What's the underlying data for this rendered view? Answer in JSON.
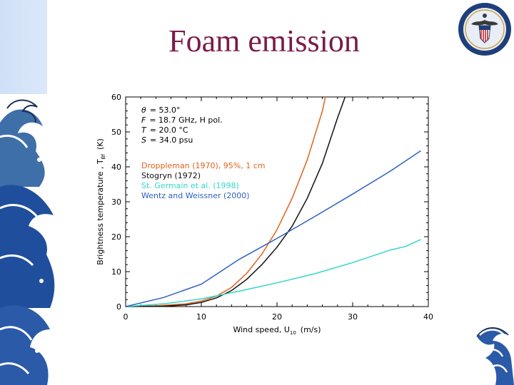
{
  "slide": {
    "title": "Foam emission"
  },
  "chart_data": {
    "type": "line",
    "xlabel": "Wind speed, U",
    "xlabel_sub": "10",
    "xlabel_unit": "(m/s)",
    "ylabel": "Brightness temperature , T",
    "ylabel_sub": "Bf",
    "ylabel_unit": "(K)",
    "xlim": [
      0,
      40
    ],
    "ylim": [
      0,
      60
    ],
    "xticks": [
      0,
      10,
      20,
      30,
      40
    ],
    "yticks": [
      0,
      10,
      20,
      30,
      40,
      50,
      60
    ],
    "xtick_labels": [
      "0",
      "10",
      "20",
      "30",
      "40"
    ],
    "ytick_labels": [
      "0",
      "10",
      "20",
      "30",
      "40",
      "50",
      "60"
    ],
    "grid": false,
    "conditions": [
      {
        "symbol": "θ",
        "text": "= 53.0°"
      },
      {
        "symbol": "F",
        "text": "= 18.7 GHz, H pol."
      },
      {
        "symbol": "T",
        "text": "= 20.0 °C"
      },
      {
        "symbol": "S",
        "text": "= 34.0 psu"
      }
    ],
    "series": [
      {
        "name": "Droppleman (1970), 95%, 1 cm",
        "color": "#e0621e",
        "points": [
          [
            0,
            0
          ],
          [
            4,
            0.2
          ],
          [
            8,
            0.8
          ],
          [
            10,
            1.6
          ],
          [
            12,
            3
          ],
          [
            14,
            5.5
          ],
          [
            16,
            9.5
          ],
          [
            18,
            15
          ],
          [
            20,
            22
          ],
          [
            22,
            31
          ],
          [
            24,
            42
          ],
          [
            26,
            56
          ],
          [
            26.4,
            60
          ]
        ]
      },
      {
        "name": "Stogryn (1972)",
        "color": "#111111",
        "points": [
          [
            0,
            0
          ],
          [
            5,
            0.1
          ],
          [
            8,
            0.5
          ],
          [
            10,
            1.2
          ],
          [
            12,
            2.5
          ],
          [
            14,
            4.6
          ],
          [
            16,
            7.8
          ],
          [
            18,
            12
          ],
          [
            20,
            17
          ],
          [
            22,
            23
          ],
          [
            24,
            31
          ],
          [
            26,
            41
          ],
          [
            28,
            54
          ],
          [
            29,
            60
          ]
        ]
      },
      {
        "name": "St. Germain et al. (1998)",
        "color": "#33d6c8",
        "points": [
          [
            0,
            0
          ],
          [
            5,
            0.8
          ],
          [
            10,
            2.2
          ],
          [
            15,
            4.4
          ],
          [
            20,
            6.8
          ],
          [
            25,
            9.4
          ],
          [
            30,
            12.6
          ],
          [
            35,
            16.2
          ],
          [
            37,
            17.2
          ],
          [
            39,
            19.2
          ]
        ]
      },
      {
        "name": "Wentz and Weissner (2000)",
        "color": "#2d5fc4",
        "points": [
          [
            0,
            0
          ],
          [
            5,
            2.6
          ],
          [
            10,
            6.4
          ],
          [
            15,
            13.5
          ],
          [
            20,
            19.5
          ],
          [
            25,
            25.8
          ],
          [
            30,
            32.2
          ],
          [
            35,
            38.8
          ],
          [
            39,
            44.6
          ]
        ]
      }
    ]
  }
}
